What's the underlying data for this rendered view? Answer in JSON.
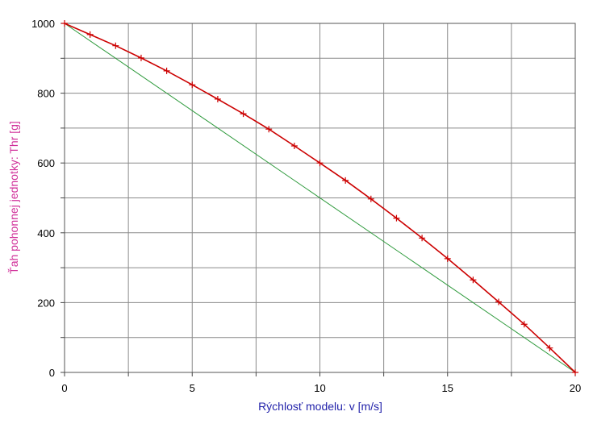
{
  "chart_data": {
    "type": "line",
    "xlabel": "Rýchlosť modelu: v [m/s]",
    "ylabel": "Ťah pohonnej jednotky: Thr [g]",
    "xlim": [
      0,
      20
    ],
    "ylim": [
      0,
      1000
    ],
    "x_ticks": [
      "0",
      "5",
      "10",
      "15",
      "20"
    ],
    "y_ticks": [
      "0",
      "200",
      "400",
      "600",
      "800",
      "1000"
    ],
    "grid": true,
    "series": [
      {
        "color": "#cc0000",
        "marker": "plus",
        "x": [
          0,
          1,
          2,
          3,
          4,
          5,
          6,
          7,
          8,
          9,
          10,
          11,
          12,
          13,
          14,
          15,
          16,
          17,
          18,
          19,
          20
        ],
        "y": [
          1000,
          968,
          936,
          901,
          864,
          824,
          783,
          741,
          697,
          649,
          600,
          550,
          497,
          442,
          385,
          326,
          265,
          202,
          138,
          70,
          0
        ]
      },
      {
        "color": "#2e9a3c",
        "marker": "none",
        "x": [
          0,
          20
        ],
        "y": [
          1000,
          0
        ]
      }
    ],
    "colors": {
      "xlabel": "#2222aa",
      "ylabel": "#d0309a",
      "grid": "#8a8a8a"
    }
  }
}
